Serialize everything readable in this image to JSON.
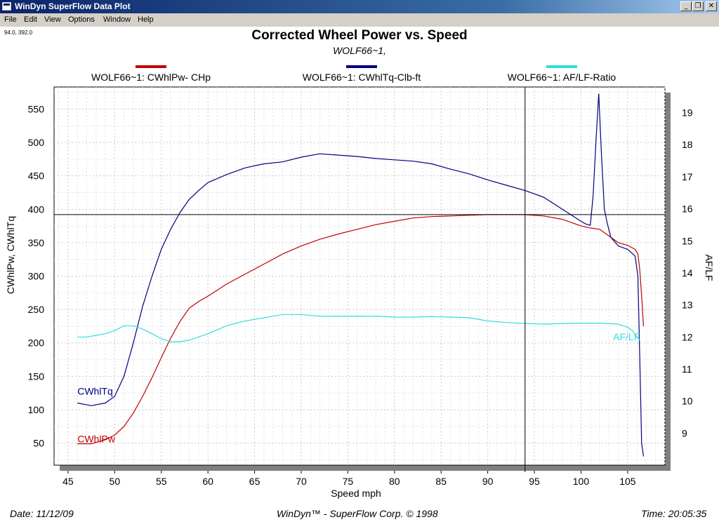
{
  "window": {
    "title": "WinDyn SuperFlow Data Plot",
    "controls": [
      "_",
      "❐",
      "✕"
    ]
  },
  "menu": [
    "File",
    "Edit",
    "View",
    "Options",
    "Window",
    "Help"
  ],
  "cursor_readout": "94.0, 392.0",
  "footer": {
    "date": "Date: 11/12/09",
    "credit": "WinDyn™ - SuperFlow Corp. © 1998",
    "time": "Time: 20:05:35"
  },
  "chart_data": {
    "type": "line",
    "title": "Corrected Wheel Power vs. Speed",
    "subtitle": "WOLF66~1,",
    "xlabel": "Speed   mph",
    "ylabel_left": "CWhlPw, CWhlTq",
    "ylabel_right": "AF/LF",
    "xlim": [
      43.5,
      109
    ],
    "ylim_left": [
      17,
      583
    ],
    "ylim_right": [
      8.0,
      19.8
    ],
    "x_ticks": [
      45,
      50,
      55,
      60,
      65,
      70,
      75,
      80,
      85,
      90,
      95,
      100,
      105
    ],
    "y_left_ticks": [
      50,
      100,
      150,
      200,
      250,
      300,
      350,
      400,
      450,
      500,
      550
    ],
    "y_right_ticks": [
      9,
      10,
      11,
      12,
      13,
      14,
      15,
      16,
      17,
      18,
      19
    ],
    "grid": true,
    "legend_position": "top",
    "cursor": {
      "x": 94.0,
      "y": 392.0
    },
    "series": [
      {
        "name": "WOLF66~1: CWhlPw- CHp",
        "label": "CWhlPw",
        "color": "#c00000",
        "axis": "left",
        "x": [
          46,
          47.5,
          49,
          50,
          51,
          52,
          53,
          54,
          55,
          56,
          57,
          58,
          59,
          60,
          62,
          64,
          66,
          68,
          70,
          72,
          74,
          76,
          78,
          80,
          82,
          84,
          86,
          88,
          90,
          92,
          94,
          96,
          98,
          100,
          101,
          102,
          103,
          104,
          105,
          105.8,
          106.1,
          106.3,
          106.5,
          106.7
        ],
        "y": [
          49,
          49,
          55,
          62,
          75,
          95,
          120,
          148,
          178,
          207,
          232,
          252,
          262,
          270,
          288,
          303,
          318,
          333,
          345,
          355,
          363,
          370,
          377,
          382,
          387,
          389,
          390,
          391,
          392,
          392,
          392,
          390,
          385,
          375,
          372,
          370,
          360,
          350,
          346,
          340,
          333,
          310,
          270,
          225
        ]
      },
      {
        "name": "WOLF66~1: CWhlTq-Clb-ft",
        "label": "CWhlTq",
        "color": "#00007f",
        "axis": "left",
        "x": [
          46,
          47.5,
          49,
          50,
          51,
          52,
          53,
          54,
          55,
          56,
          57,
          58,
          59,
          60,
          62,
          64,
          66,
          68,
          70,
          72,
          74,
          76,
          78,
          80,
          82,
          84,
          86,
          88,
          90,
          92,
          94,
          96,
          98,
          100,
          100.5,
          101,
          101.3,
          101.6,
          101.9,
          102.2,
          102.5,
          102.8,
          103.2,
          104,
          105,
          105.8,
          106.1,
          106.3,
          106.5,
          106.7
        ],
        "y": [
          110,
          106,
          110,
          120,
          150,
          200,
          255,
          300,
          340,
          370,
          395,
          415,
          428,
          440,
          452,
          462,
          468,
          471,
          478,
          483,
          481,
          479,
          476,
          474,
          472,
          468,
          460,
          453,
          444,
          436,
          428,
          418,
          400,
          382,
          378,
          376,
          420,
          500,
          573,
          480,
          400,
          380,
          358,
          345,
          340,
          330,
          300,
          180,
          50,
          30
        ]
      },
      {
        "name": "WOLF66~1:  AF/LF-Ratio",
        "label": "AF/LF",
        "color": "#33dddd",
        "axis": "right",
        "x": [
          46,
          47,
          48,
          49,
          50,
          51,
          52,
          53,
          54,
          55,
          56,
          57,
          58,
          59,
          60,
          62,
          64,
          66,
          68,
          70,
          72,
          74,
          76,
          78,
          80,
          82,
          84,
          86,
          88,
          90,
          92,
          94,
          96,
          98,
          100,
          102,
          104,
          105,
          105.5,
          106,
          106.3
        ],
        "y": [
          12.0,
          12.0,
          12.05,
          12.1,
          12.2,
          12.35,
          12.35,
          12.25,
          12.1,
          11.95,
          11.85,
          11.85,
          11.9,
          12.0,
          12.1,
          12.35,
          12.5,
          12.6,
          12.7,
          12.7,
          12.65,
          12.65,
          12.65,
          12.65,
          12.62,
          12.62,
          12.64,
          12.62,
          12.6,
          12.5,
          12.45,
          12.42,
          12.4,
          12.42,
          12.43,
          12.43,
          12.4,
          12.3,
          12.2,
          12.0,
          11.9
        ]
      }
    ]
  }
}
